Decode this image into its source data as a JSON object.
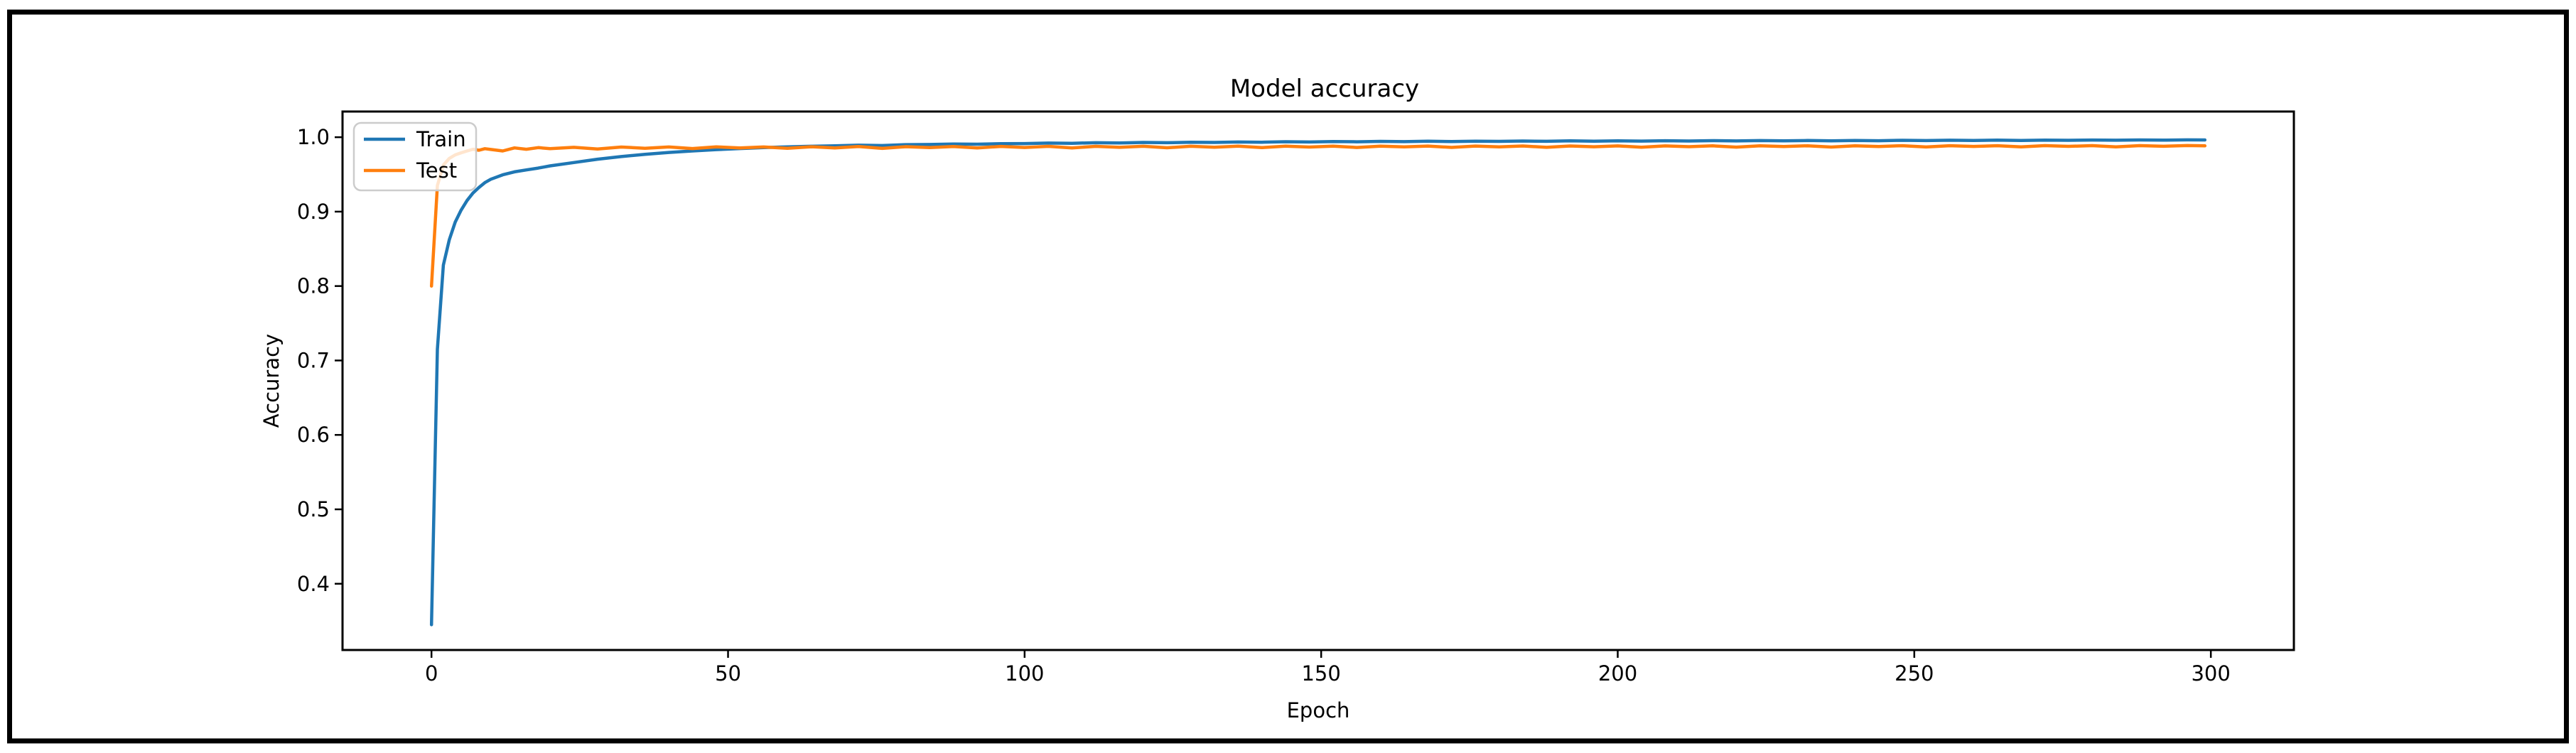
{
  "chart_data": {
    "type": "line",
    "title": "Model accuracy",
    "xlabel": "Epoch",
    "ylabel": "Accuracy",
    "xlim": [
      -15,
      314
    ],
    "ylim": [
      0.311,
      1.0345
    ],
    "x_ticks": [
      0,
      50,
      100,
      150,
      200,
      250,
      300
    ],
    "y_ticks": [
      0.4,
      0.5,
      0.6,
      0.7,
      0.8,
      0.9,
      1.0
    ],
    "grid": false,
    "legend_position": "upper-left",
    "legend_entries": [
      "Train",
      "Test"
    ],
    "colors": {
      "train": "#1f77b4",
      "test": "#ff7f0e"
    },
    "series": [
      {
        "name": "Train",
        "color": "#1f77b4",
        "points": [
          [
            0,
            0.345
          ],
          [
            1,
            0.715
          ],
          [
            2,
            0.828
          ],
          [
            3,
            0.862
          ],
          [
            4,
            0.886
          ],
          [
            5,
            0.902
          ],
          [
            6,
            0.915
          ],
          [
            7,
            0.925
          ],
          [
            8,
            0.9325
          ],
          [
            9,
            0.939
          ],
          [
            10,
            0.9435
          ],
          [
            12,
            0.9495
          ],
          [
            14,
            0.9535
          ],
          [
            16,
            0.956
          ],
          [
            18,
            0.9585
          ],
          [
            20,
            0.9615
          ],
          [
            24,
            0.966
          ],
          [
            28,
            0.9705
          ],
          [
            32,
            0.974
          ],
          [
            36,
            0.977
          ],
          [
            40,
            0.9795
          ],
          [
            44,
            0.9815
          ],
          [
            48,
            0.9833
          ],
          [
            52,
            0.9848
          ],
          [
            56,
            0.986
          ],
          [
            60,
            0.987
          ],
          [
            64,
            0.9878
          ],
          [
            68,
            0.9885
          ],
          [
            72,
            0.9893
          ],
          [
            76,
            0.9888
          ],
          [
            80,
            0.99
          ],
          [
            84,
            0.9902
          ],
          [
            88,
            0.9908
          ],
          [
            92,
            0.9906
          ],
          [
            96,
            0.9913
          ],
          [
            100,
            0.9915
          ],
          [
            104,
            0.9921
          ],
          [
            108,
            0.9918
          ],
          [
            112,
            0.9926
          ],
          [
            116,
            0.9923
          ],
          [
            120,
            0.993
          ],
          [
            124,
            0.9926
          ],
          [
            128,
            0.9933
          ],
          [
            132,
            0.993
          ],
          [
            136,
            0.9936
          ],
          [
            140,
            0.9933
          ],
          [
            144,
            0.9939
          ],
          [
            148,
            0.9936
          ],
          [
            152,
            0.9942
          ],
          [
            156,
            0.9938
          ],
          [
            160,
            0.9944
          ],
          [
            164,
            0.994
          ],
          [
            168,
            0.9946
          ],
          [
            172,
            0.9942
          ],
          [
            176,
            0.9947
          ],
          [
            180,
            0.9944
          ],
          [
            184,
            0.9949
          ],
          [
            188,
            0.9945
          ],
          [
            192,
            0.9951
          ],
          [
            196,
            0.9946
          ],
          [
            200,
            0.9952
          ],
          [
            204,
            0.9948
          ],
          [
            208,
            0.9953
          ],
          [
            212,
            0.9949
          ],
          [
            216,
            0.9954
          ],
          [
            220,
            0.995
          ],
          [
            224,
            0.9955
          ],
          [
            228,
            0.9951
          ],
          [
            232,
            0.9956
          ],
          [
            236,
            0.9952
          ],
          [
            240,
            0.9957
          ],
          [
            244,
            0.9953
          ],
          [
            248,
            0.9958
          ],
          [
            252,
            0.9955
          ],
          [
            256,
            0.9959
          ],
          [
            260,
            0.9956
          ],
          [
            264,
            0.996
          ],
          [
            268,
            0.9956
          ],
          [
            272,
            0.9961
          ],
          [
            276,
            0.9958
          ],
          [
            280,
            0.9962
          ],
          [
            284,
            0.9959
          ],
          [
            288,
            0.9963
          ],
          [
            292,
            0.996
          ],
          [
            296,
            0.9964
          ],
          [
            299,
            0.9963
          ]
        ]
      },
      {
        "name": "Test",
        "color": "#ff7f0e",
        "points": [
          [
            0,
            0.8
          ],
          [
            1,
            0.935
          ],
          [
            2,
            0.9625
          ],
          [
            3,
            0.9715
          ],
          [
            4,
            0.9763
          ],
          [
            5,
            0.979
          ],
          [
            6,
            0.9815
          ],
          [
            7,
            0.9838
          ],
          [
            8,
            0.9825
          ],
          [
            9,
            0.9846
          ],
          [
            10,
            0.9835
          ],
          [
            12,
            0.9815
          ],
          [
            14,
            0.9856
          ],
          [
            16,
            0.9838
          ],
          [
            18,
            0.986
          ],
          [
            20,
            0.9846
          ],
          [
            24,
            0.9864
          ],
          [
            28,
            0.9841
          ],
          [
            32,
            0.9868
          ],
          [
            36,
            0.9852
          ],
          [
            40,
            0.9869
          ],
          [
            44,
            0.9848
          ],
          [
            48,
            0.9871
          ],
          [
            52,
            0.9855
          ],
          [
            56,
            0.9869
          ],
          [
            60,
            0.9851
          ],
          [
            64,
            0.9872
          ],
          [
            68,
            0.9856
          ],
          [
            72,
            0.9874
          ],
          [
            76,
            0.985
          ],
          [
            80,
            0.9873
          ],
          [
            84,
            0.986
          ],
          [
            88,
            0.9875
          ],
          [
            92,
            0.9855
          ],
          [
            96,
            0.9876
          ],
          [
            100,
            0.9862
          ],
          [
            104,
            0.9877
          ],
          [
            108,
            0.9856
          ],
          [
            112,
            0.9877
          ],
          [
            116,
            0.9864
          ],
          [
            120,
            0.9878
          ],
          [
            124,
            0.9858
          ],
          [
            128,
            0.9878
          ],
          [
            132,
            0.9866
          ],
          [
            136,
            0.9879
          ],
          [
            140,
            0.986
          ],
          [
            144,
            0.9879
          ],
          [
            148,
            0.9868
          ],
          [
            152,
            0.988
          ],
          [
            156,
            0.9862
          ],
          [
            160,
            0.988
          ],
          [
            164,
            0.987
          ],
          [
            168,
            0.9881
          ],
          [
            172,
            0.9863
          ],
          [
            176,
            0.9881
          ],
          [
            180,
            0.9871
          ],
          [
            184,
            0.9882
          ],
          [
            188,
            0.9864
          ],
          [
            192,
            0.9882
          ],
          [
            196,
            0.9872
          ],
          [
            200,
            0.9883
          ],
          [
            204,
            0.9866
          ],
          [
            208,
            0.9883
          ],
          [
            212,
            0.9873
          ],
          [
            216,
            0.9884
          ],
          [
            220,
            0.9867
          ],
          [
            224,
            0.9884
          ],
          [
            228,
            0.9874
          ],
          [
            232,
            0.9885
          ],
          [
            236,
            0.9868
          ],
          [
            240,
            0.9885
          ],
          [
            244,
            0.9875
          ],
          [
            248,
            0.9886
          ],
          [
            252,
            0.9869
          ],
          [
            256,
            0.9886
          ],
          [
            260,
            0.9876
          ],
          [
            264,
            0.9886
          ],
          [
            268,
            0.987
          ],
          [
            272,
            0.9887
          ],
          [
            276,
            0.9877
          ],
          [
            280,
            0.9887
          ],
          [
            284,
            0.9871
          ],
          [
            288,
            0.9887
          ],
          [
            292,
            0.9878
          ],
          [
            296,
            0.9888
          ],
          [
            299,
            0.9884
          ]
        ]
      }
    ]
  }
}
